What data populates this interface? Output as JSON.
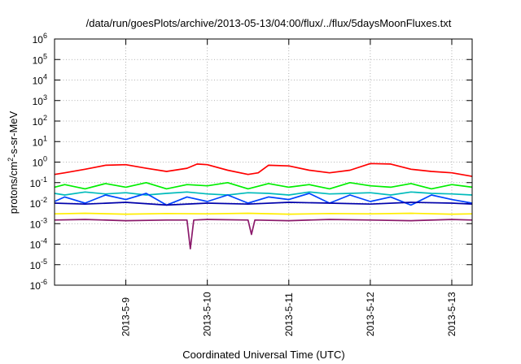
{
  "chart_data": {
    "type": "line",
    "title": "/data/run/goesPlots/archive/2013-05-13/04:00/flux/../flux/5daysMoonFluxes.txt",
    "xlabel": "Coordinated Universal Time (UTC)",
    "ylabel": "protons/cm2-s-sr-MeV",
    "ylabel_parts": {
      "pre": "protons/cm",
      "sup": "2",
      "post": "-s-sr-MeV"
    },
    "yscale": "log",
    "ylim": [
      1e-06,
      1000000.0
    ],
    "xlim": [
      "2013-05-08 03:00",
      "2013-05-13 06:00"
    ],
    "grid": true,
    "x_ticks": [
      "2013-5-9",
      "2013-5-10",
      "2013-5-11",
      "2013-5-12",
      "2013-5-13"
    ],
    "y_ticks": [
      {
        "base": "10",
        "exp": "-6"
      },
      {
        "base": "10",
        "exp": "-5"
      },
      {
        "base": "10",
        "exp": "-4"
      },
      {
        "base": "10",
        "exp": "-3"
      },
      {
        "base": "10",
        "exp": "-2"
      },
      {
        "base": "10",
        "exp": "-1"
      },
      {
        "base": "10",
        "exp": "0"
      },
      {
        "base": "10",
        "exp": "1"
      },
      {
        "base": "10",
        "exp": "2"
      },
      {
        "base": "10",
        "exp": "3"
      },
      {
        "base": "10",
        "exp": "4"
      },
      {
        "base": "10",
        "exp": "5"
      },
      {
        "base": "10",
        "exp": "6"
      }
    ],
    "series": [
      {
        "color": "#ff0000",
        "x": [
          "2013-05-08 03:00",
          "2013-05-08 06:00",
          "2013-05-08 12:00",
          "2013-05-08 18:00",
          "2013-05-09 00:00",
          "2013-05-09 06:00",
          "2013-05-09 12:00",
          "2013-05-09 18:00",
          "2013-05-09 21:00",
          "2013-05-10 00:00",
          "2013-05-10 06:00",
          "2013-05-10 12:00",
          "2013-05-10 15:00",
          "2013-05-10 18:00",
          "2013-05-11 00:00",
          "2013-05-11 06:00",
          "2013-05-11 12:00",
          "2013-05-11 18:00",
          "2013-05-12 00:00",
          "2013-05-12 06:00",
          "2013-05-12 12:00",
          "2013-05-12 18:00",
          "2013-05-13 00:00",
          "2013-05-13 06:00"
        ],
        "y": [
          0.25,
          0.3,
          0.45,
          0.7,
          0.75,
          0.5,
          0.35,
          0.5,
          0.8,
          0.75,
          0.4,
          0.25,
          0.3,
          0.7,
          0.65,
          0.4,
          0.3,
          0.4,
          0.85,
          0.8,
          0.45,
          0.35,
          0.3,
          0.2
        ]
      },
      {
        "color": "#00ee00",
        "x": [
          "2013-05-08 03:00",
          "2013-05-08 06:00",
          "2013-05-08 12:00",
          "2013-05-08 18:00",
          "2013-05-09 00:00",
          "2013-05-09 06:00",
          "2013-05-09 12:00",
          "2013-05-09 18:00",
          "2013-05-10 00:00",
          "2013-05-10 06:00",
          "2013-05-10 12:00",
          "2013-05-10 18:00",
          "2013-05-11 00:00",
          "2013-05-11 06:00",
          "2013-05-11 12:00",
          "2013-05-11 18:00",
          "2013-05-12 00:00",
          "2013-05-12 06:00",
          "2013-05-12 12:00",
          "2013-05-12 18:00",
          "2013-05-13 00:00",
          "2013-05-13 06:00"
        ],
        "y": [
          0.06,
          0.08,
          0.05,
          0.09,
          0.06,
          0.1,
          0.05,
          0.08,
          0.07,
          0.1,
          0.05,
          0.09,
          0.06,
          0.08,
          0.05,
          0.1,
          0.07,
          0.06,
          0.09,
          0.05,
          0.08,
          0.06
        ]
      },
      {
        "color": "#00bbbb",
        "x": [
          "2013-05-08 03:00",
          "2013-05-08 06:00",
          "2013-05-08 12:00",
          "2013-05-08 18:00",
          "2013-05-09 00:00",
          "2013-05-09 06:00",
          "2013-05-09 12:00",
          "2013-05-09 18:00",
          "2013-05-10 00:00",
          "2013-05-10 06:00",
          "2013-05-10 12:00",
          "2013-05-10 18:00",
          "2013-05-11 00:00",
          "2013-05-11 06:00",
          "2013-05-11 12:00",
          "2013-05-11 18:00",
          "2013-05-12 00:00",
          "2013-05-12 06:00",
          "2013-05-12 12:00",
          "2013-05-12 18:00",
          "2013-05-13 00:00",
          "2013-05-13 06:00"
        ],
        "y": [
          0.03,
          0.025,
          0.035,
          0.028,
          0.032,
          0.025,
          0.03,
          0.035,
          0.028,
          0.025,
          0.032,
          0.03,
          0.025,
          0.035,
          0.028,
          0.03,
          0.032,
          0.025,
          0.035,
          0.03,
          0.028,
          0.025
        ]
      },
      {
        "color": "#0044ff",
        "x": [
          "2013-05-08 03:00",
          "2013-05-08 06:00",
          "2013-05-08 12:00",
          "2013-05-08 18:00",
          "2013-05-09 00:00",
          "2013-05-09 06:00",
          "2013-05-09 12:00",
          "2013-05-09 18:00",
          "2013-05-10 00:00",
          "2013-05-10 06:00",
          "2013-05-10 12:00",
          "2013-05-10 18:00",
          "2013-05-11 00:00",
          "2013-05-11 06:00",
          "2013-05-11 12:00",
          "2013-05-11 18:00",
          "2013-05-12 00:00",
          "2013-05-12 06:00",
          "2013-05-12 12:00",
          "2013-05-12 18:00",
          "2013-05-13 00:00",
          "2013-05-13 06:00"
        ],
        "y": [
          0.012,
          0.02,
          0.01,
          0.025,
          0.015,
          0.03,
          0.008,
          0.02,
          0.012,
          0.025,
          0.01,
          0.02,
          0.015,
          0.03,
          0.01,
          0.025,
          0.012,
          0.02,
          0.008,
          0.025,
          0.015,
          0.01
        ]
      },
      {
        "color": "#0000aa",
        "x": [
          "2013-05-08 03:00",
          "2013-05-08 12:00",
          "2013-05-09 00:00",
          "2013-05-09 12:00",
          "2013-05-10 00:00",
          "2013-05-10 12:00",
          "2013-05-11 00:00",
          "2013-05-11 12:00",
          "2013-05-12 00:00",
          "2013-05-12 12:00",
          "2013-05-13 00:00",
          "2013-05-13 06:00"
        ],
        "y": [
          0.01,
          0.009,
          0.011,
          0.008,
          0.01,
          0.009,
          0.011,
          0.01,
          0.009,
          0.011,
          0.01,
          0.009
        ]
      },
      {
        "color": "#ffee00",
        "x": [
          "2013-05-08 03:00",
          "2013-05-08 12:00",
          "2013-05-09 00:00",
          "2013-05-09 12:00",
          "2013-05-10 00:00",
          "2013-05-10 12:00",
          "2013-05-11 00:00",
          "2013-05-11 12:00",
          "2013-05-12 00:00",
          "2013-05-12 12:00",
          "2013-05-13 00:00",
          "2013-05-13 06:00"
        ],
        "y": [
          0.003,
          0.0032,
          0.0029,
          0.0031,
          0.003,
          0.0032,
          0.0029,
          0.0031,
          0.003,
          0.0032,
          0.0029,
          0.003
        ]
      },
      {
        "color": "#8b1a6b",
        "x": [
          "2013-05-08 03:00",
          "2013-05-08 12:00",
          "2013-05-09 00:00",
          "2013-05-09 12:00",
          "2013-05-09 18:00",
          "2013-05-09 19:00",
          "2013-05-09 20:00",
          "2013-05-10 00:00",
          "2013-05-10 12:00",
          "2013-05-10 13:00",
          "2013-05-10 14:00",
          "2013-05-11 00:00",
          "2013-05-11 12:00",
          "2013-05-12 00:00",
          "2013-05-12 12:00",
          "2013-05-13 00:00",
          "2013-05-13 06:00"
        ],
        "y": [
          0.0015,
          0.0016,
          0.0014,
          0.0015,
          0.0015,
          6e-05,
          0.0015,
          0.0016,
          0.0015,
          0.0003,
          0.0015,
          0.0014,
          0.0016,
          0.0015,
          0.0014,
          0.0016,
          0.0015
        ]
      }
    ]
  }
}
